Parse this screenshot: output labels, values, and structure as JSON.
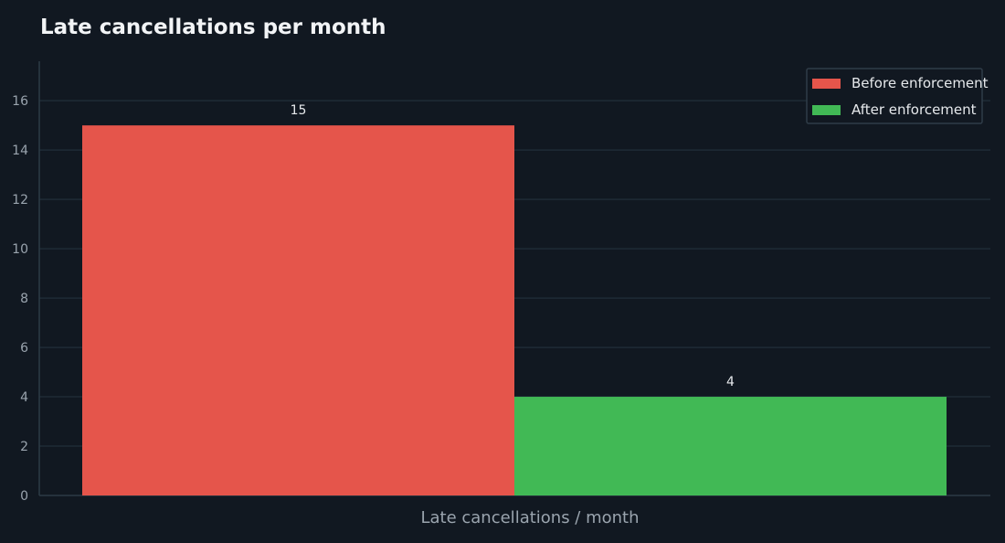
{
  "chart_data": {
    "type": "bar",
    "title": "Late cancellations per month",
    "xlabel": "Late cancellations / month",
    "ylabel": "",
    "categories": [
      "Late cancellations / month"
    ],
    "series": [
      {
        "name": "Before enforcement",
        "values": [
          15
        ],
        "color": "#e5554b"
      },
      {
        "name": "After enforcement",
        "values": [
          4
        ],
        "color": "#41b955"
      }
    ],
    "ylim": [
      0,
      17.6
    ],
    "yticks": [
      0,
      2,
      4,
      6,
      8,
      10,
      12,
      14,
      16
    ],
    "grid": true,
    "legend_position": "top-right",
    "data_labels": true
  },
  "colors": {
    "background": "#111821",
    "grid": "#1f2b36",
    "axis": "#2c3a46",
    "legend_border": "#2f3c48"
  }
}
